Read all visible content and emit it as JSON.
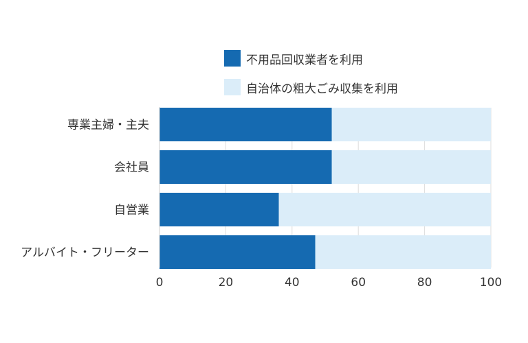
{
  "chart_data": {
    "type": "bar",
    "orientation": "horizontal",
    "stacked": true,
    "categories": [
      "専業主婦・主夫",
      "会社員",
      "自営業",
      "アルバイト・フリーター"
    ],
    "series": [
      {
        "name": "不用品回収業者を利用",
        "values": [
          52,
          52,
          36,
          47
        ],
        "color": "#156ab1"
      },
      {
        "name": "自治体の粗大ごみ収集を利用",
        "values": [
          48,
          48,
          64,
          53
        ],
        "color": "#dbedf9"
      }
    ],
    "xlim": [
      0,
      100
    ],
    "xticks": [
      "0",
      "20",
      "40",
      "60",
      "80",
      "100"
    ],
    "grid": true,
    "legend_position": "top"
  }
}
